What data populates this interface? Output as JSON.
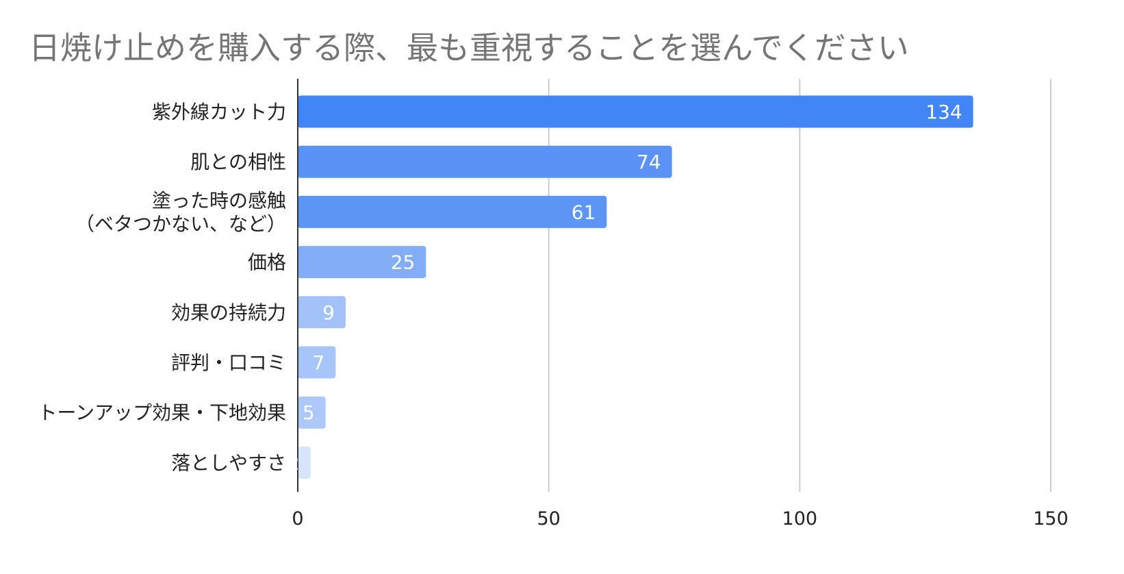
{
  "chart_data": {
    "type": "bar",
    "orientation": "horizontal",
    "title": "日焼け止めを購入する際、最も重視することを選んでください",
    "categories": [
      "紫外線カット力",
      "肌との相性",
      "塗った時の感触\n（ベタつかない、など）",
      "価格",
      "効果の持続力",
      "評判・口コミ",
      "トーンアップ効果・下地効果",
      "落としやすさ"
    ],
    "values": [
      134,
      74,
      61,
      25,
      9,
      7,
      5,
      2
    ],
    "data_labels": [
      "134",
      "74",
      "61",
      "25",
      "9",
      "7",
      "5",
      "2"
    ],
    "bar_colors": [
      "#4285f4",
      "#5b93f5",
      "#5d95f5",
      "#84adf8",
      "#a3c2fa",
      "#a8c5fa",
      "#adc9fb",
      "#d6e4fd"
    ],
    "xlim": [
      0,
      150
    ],
    "x_ticks": [
      0,
      50,
      100,
      150
    ],
    "grid": true,
    "xlabel": "",
    "ylabel": "",
    "legend": "none"
  }
}
